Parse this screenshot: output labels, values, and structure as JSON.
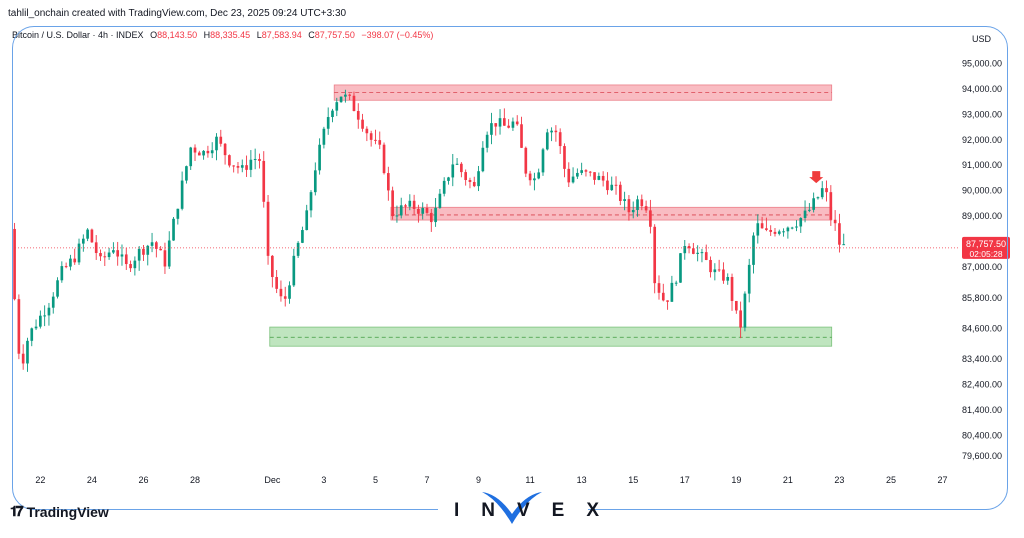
{
  "header": {
    "attribution": "tahlil_onchain created with TradingView.com, Dec 23, 2025 09:24 UTC+3:30"
  },
  "legend": {
    "symbol": "Bitcoin / U.S. Dollar · 4h · INDEX",
    "o_label": "O",
    "o_value": "88,143.50",
    "h_label": "H",
    "h_value": "88,335.45",
    "l_label": "L",
    "l_value": "87,583.94",
    "c_label": "C",
    "c_value": "87,757.50",
    "change": "−398.07 (−0.45%)"
  },
  "branding": {
    "tradingview": "TradingView",
    "invex": "INVEX"
  },
  "colors": {
    "up": "#089981",
    "down": "#f23645",
    "resistance": "#f7a6ad",
    "support": "#a9dca9",
    "frame": "#6aa3e8"
  },
  "chart_data": {
    "type": "candlestick",
    "currency_label": "USD",
    "y_ticks": [
      "95,000.00",
      "94,000.00",
      "93,000.00",
      "92,000.00",
      "91,000.00",
      "90,000.00",
      "89,000.00",
      "88,000.00",
      "87,000.00",
      "85,800.00",
      "84,600.00",
      "83,400.00",
      "82,400.00",
      "81,400.00",
      "80,400.00",
      "79,600.00"
    ],
    "ylim": [
      79200,
      95600
    ],
    "x_ticks": [
      "22",
      "24",
      "26",
      "28",
      "Dec",
      "3",
      "5",
      "7",
      "9",
      "11",
      "13",
      "15",
      "17",
      "19",
      "21",
      "23",
      "25",
      "27"
    ],
    "x_tick_days": [
      -9,
      -7,
      -5,
      -3,
      0,
      2,
      4,
      6,
      8,
      10,
      12,
      14,
      16,
      18,
      20,
      22,
      24,
      26
    ],
    "xlim_days": [
      -10.1,
      26.6
    ],
    "last_price": {
      "value": 87757.5,
      "label": "87,757.50",
      "countdown": "02:05:28"
    },
    "zones": [
      {
        "kind": "resistance",
        "day_from": 2.4,
        "day_to": 21.7,
        "low": 93550,
        "high": 94150,
        "mid": 93850
      },
      {
        "kind": "resistance",
        "day_from": 4.6,
        "day_to": 21.7,
        "low": 88850,
        "high": 89350,
        "mid": 89050
      },
      {
        "kind": "support",
        "day_from": -0.1,
        "day_to": 21.7,
        "low": 83900,
        "high": 84650,
        "mid": 84250
      }
    ],
    "marker": {
      "type": "down-arrow",
      "day": 21.1,
      "price": 90300
    },
    "waypoints": [
      [
        -10.0,
        88500
      ],
      [
        -9.8,
        85200
      ],
      [
        -9.6,
        83000
      ],
      [
        -9.3,
        84300
      ],
      [
        -9.0,
        84800
      ],
      [
        -8.5,
        85600
      ],
      [
        -8.0,
        86800
      ],
      [
        -7.5,
        87400
      ],
      [
        -7.0,
        88400
      ],
      [
        -6.5,
        87200
      ],
      [
        -6.0,
        87800
      ],
      [
        -5.5,
        87000
      ],
      [
        -5.0,
        87600
      ],
      [
        -4.5,
        88000
      ],
      [
        -4.0,
        87200
      ],
      [
        -3.5,
        89500
      ],
      [
        -3.0,
        91700
      ],
      [
        -2.5,
        91500
      ],
      [
        -2.0,
        92000
      ],
      [
        -1.5,
        91200
      ],
      [
        -1.0,
        90800
      ],
      [
        -0.6,
        91300
      ],
      [
        -0.3,
        91200
      ],
      [
        0.0,
        87200
      ],
      [
        0.3,
        86200
      ],
      [
        0.6,
        85500
      ],
      [
        0.9,
        86800
      ],
      [
        1.2,
        88000
      ],
      [
        1.5,
        89000
      ],
      [
        1.8,
        90800
      ],
      [
        2.1,
        92000
      ],
      [
        2.4,
        93200
      ],
      [
        2.8,
        93800
      ],
      [
        3.2,
        93500
      ],
      [
        3.6,
        92800
      ],
      [
        4.0,
        92000
      ],
      [
        4.4,
        91500
      ],
      [
        4.8,
        89100
      ],
      [
        5.2,
        89300
      ],
      [
        5.6,
        89400
      ],
      [
        6.0,
        89200
      ],
      [
        6.4,
        88900
      ],
      [
        6.8,
        90100
      ],
      [
        7.2,
        91200
      ],
      [
        7.6,
        90600
      ],
      [
        8.0,
        90100
      ],
      [
        8.4,
        92300
      ],
      [
        8.8,
        92700
      ],
      [
        9.2,
        92500
      ],
      [
        9.6,
        92700
      ],
      [
        10.0,
        90800
      ],
      [
        10.4,
        90400
      ],
      [
        10.8,
        92500
      ],
      [
        11.2,
        92300
      ],
      [
        11.6,
        90400
      ],
      [
        12.0,
        90700
      ],
      [
        12.5,
        90600
      ],
      [
        13.0,
        90400
      ],
      [
        13.5,
        90000
      ],
      [
        14.0,
        89200
      ],
      [
        14.4,
        89700
      ],
      [
        14.8,
        89300
      ],
      [
        15.0,
        86500
      ],
      [
        15.4,
        85600
      ],
      [
        15.8,
        86500
      ],
      [
        16.2,
        88100
      ],
      [
        16.6,
        87600
      ],
      [
        17.0,
        87200
      ],
      [
        17.4,
        86700
      ],
      [
        17.8,
        86600
      ],
      [
        18.0,
        85800
      ],
      [
        18.3,
        84500
      ],
      [
        18.6,
        86500
      ],
      [
        18.9,
        88700
      ],
      [
        19.3,
        88300
      ],
      [
        19.7,
        88500
      ],
      [
        20.1,
        88600
      ],
      [
        20.5,
        88800
      ],
      [
        20.9,
        89100
      ],
      [
        21.3,
        89700
      ],
      [
        21.6,
        90200
      ],
      [
        21.8,
        89000
      ],
      [
        22.0,
        88600
      ],
      [
        22.2,
        87800
      ]
    ]
  }
}
